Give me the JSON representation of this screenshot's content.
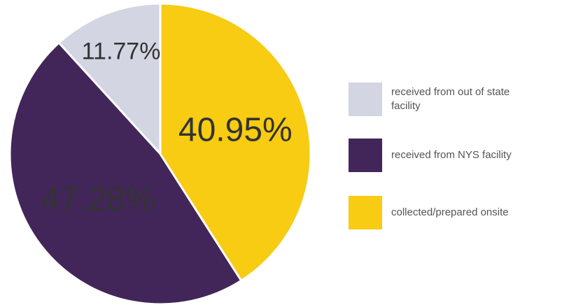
{
  "chart_data": {
    "type": "pie",
    "categories": [
      "received from out of state facility",
      "received from NYS facility",
      "collected/prepared onsite"
    ],
    "values": [
      11.77,
      47.28,
      40.95
    ],
    "value_labels": [
      "11.77%",
      "47.28%",
      "40.95%"
    ],
    "colors": [
      "#d3d5e3",
      "#42265a",
      "#f7cc12"
    ],
    "legend": "right"
  }
}
